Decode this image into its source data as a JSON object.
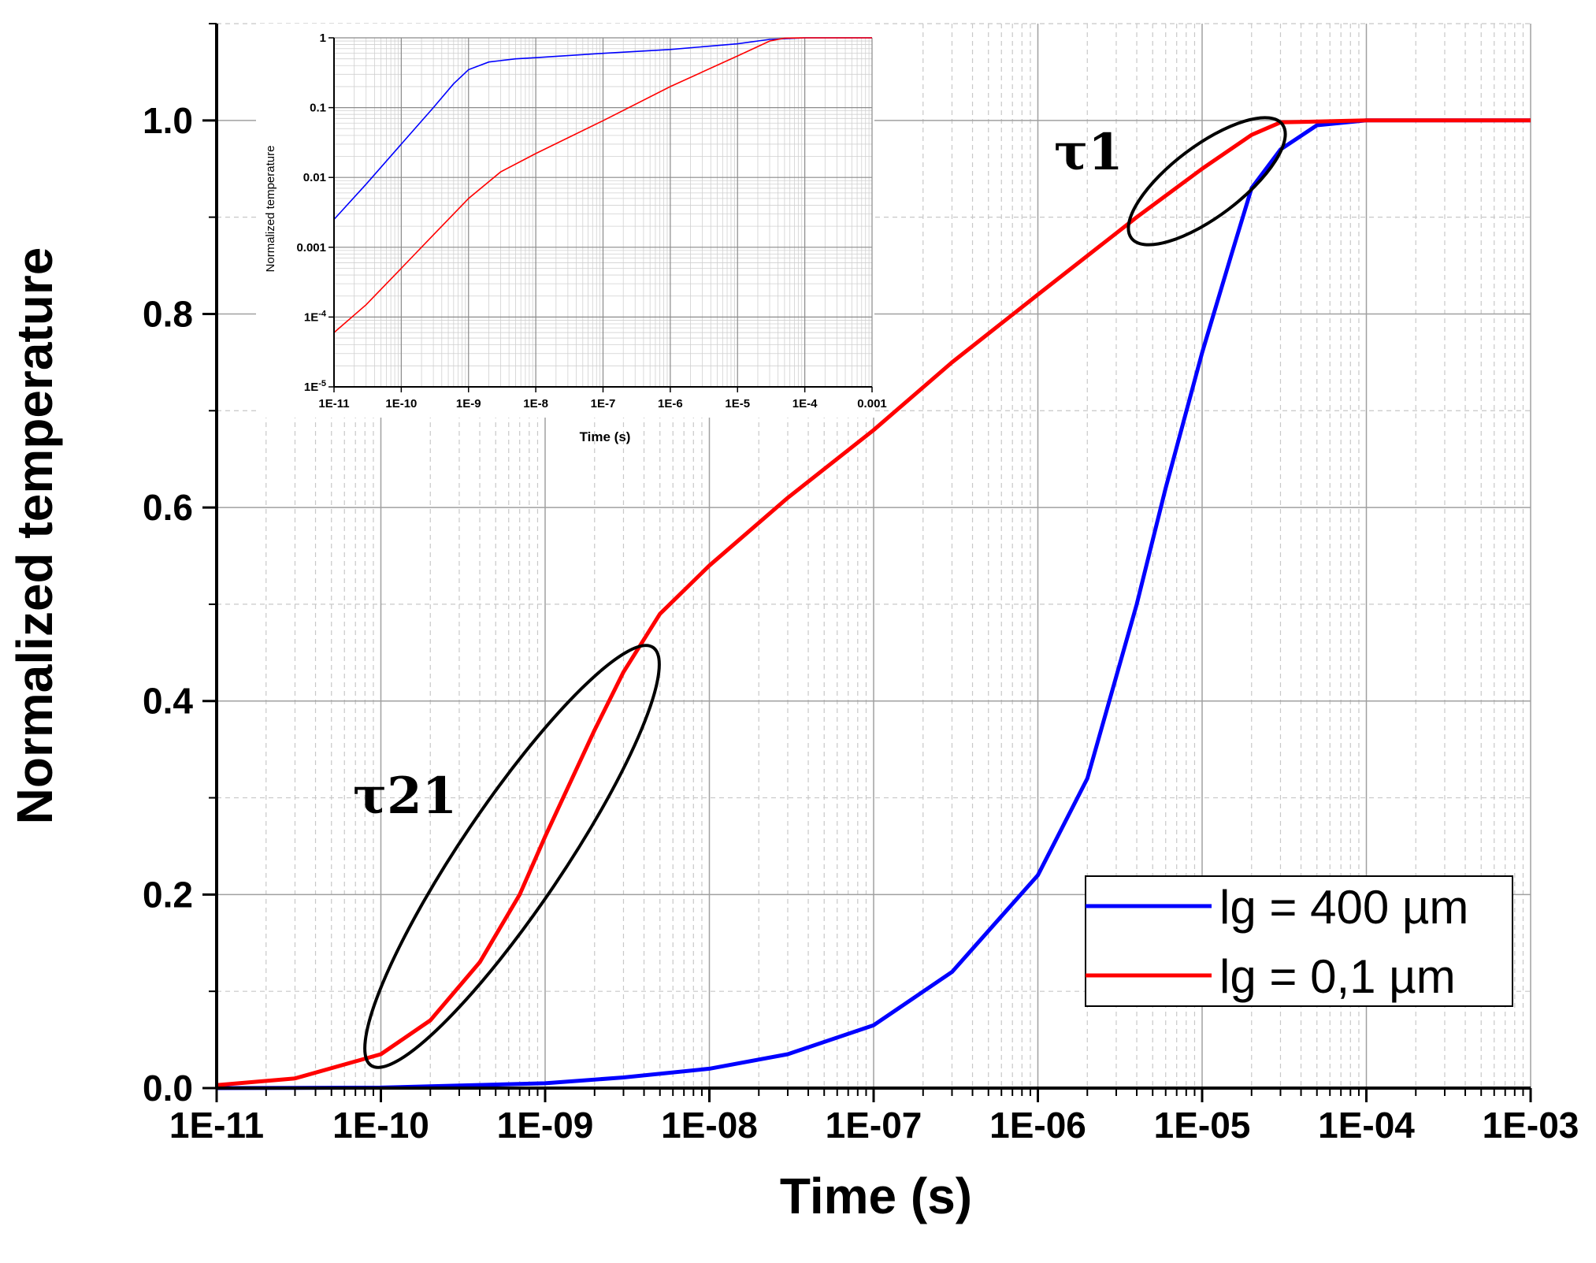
{
  "chart_data": [
    {
      "type": "line",
      "xlabel": "Time (s)",
      "ylabel": "Normalized temperature",
      "xscale": "log",
      "xlim": [
        1e-11,
        0.001
      ],
      "ylim": [
        0,
        1.1
      ],
      "grid": true,
      "x_tick_labels": [
        "1E-11",
        "1E-10",
        "1E-09",
        "1E-08",
        "1E-07",
        "1E-06",
        "1E-05",
        "1E-04",
        "1E-03"
      ],
      "y_tick_labels": [
        "0.0",
        "0.2",
        "0.4",
        "0.6",
        "0.8",
        "1.0"
      ],
      "legend": {
        "placement": "bottom-right",
        "entries": [
          "lg = 400 µm",
          "lg = 0,1 µm"
        ]
      },
      "annotations": [
        {
          "text": "τ21",
          "x": 6e-10,
          "y": 0.27
        },
        {
          "text": "τ1",
          "x": 1.2e-05,
          "y": 0.95
        }
      ],
      "series": [
        {
          "name": "lg = 400 µm",
          "color": "#0000ff",
          "x": [
            1e-11,
            1e-10,
            1e-09,
            3e-09,
            1e-08,
            3e-08,
            1e-07,
            3e-07,
            1e-06,
            2e-06,
            4e-06,
            6e-06,
            1e-05,
            1.5e-05,
            2e-05,
            3e-05,
            5e-05,
            0.0001,
            0.001
          ],
          "y": [
            0.0,
            0.0005,
            0.005,
            0.011,
            0.02,
            0.035,
            0.065,
            0.12,
            0.22,
            0.32,
            0.5,
            0.62,
            0.76,
            0.86,
            0.93,
            0.97,
            0.995,
            1.0,
            1.0
          ]
        },
        {
          "name": "lg = 0,1 µm",
          "color": "#ff0000",
          "x": [
            1e-11,
            3e-11,
            1e-10,
            2e-10,
            4e-10,
            7e-10,
            1e-09,
            2e-09,
            3e-09,
            5e-09,
            1e-08,
            3e-08,
            1e-07,
            3e-07,
            1e-06,
            4e-06,
            1e-05,
            2e-05,
            3e-05,
            0.0001,
            0.001
          ],
          "y": [
            0.003,
            0.01,
            0.035,
            0.07,
            0.13,
            0.2,
            0.26,
            0.37,
            0.43,
            0.49,
            0.54,
            0.61,
            0.68,
            0.75,
            0.82,
            0.9,
            0.95,
            0.985,
            0.998,
            1.0,
            1.0
          ]
        }
      ]
    },
    {
      "type": "line",
      "xlabel": "Time (s)",
      "ylabel": "Normalized temperature",
      "xscale": "log",
      "yscale": "log",
      "xlim": [
        1e-11,
        0.001
      ],
      "ylim": [
        1e-05,
        1
      ],
      "grid": true,
      "x_tick_labels": [
        "1E-11",
        "1E-10",
        "1E-9",
        "1E-8",
        "1E-7",
        "1E-6",
        "1E-5",
        "1E-4",
        "0.001"
      ],
      "y_tick_labels": [
        {
          "base": "1E",
          "exp": "-5"
        },
        {
          "base": "1E",
          "exp": "-4"
        },
        {
          "base": "0.001",
          "exp": ""
        },
        {
          "base": "0.01",
          "exp": ""
        },
        {
          "base": "0.1",
          "exp": ""
        },
        {
          "base": "1",
          "exp": ""
        }
      ],
      "series": [
        {
          "name": "lg = 400 µm",
          "color": "#0000ff",
          "x": [
            1e-11,
            3e-11,
            1e-10,
            3e-10,
            6e-10,
            1e-09,
            2e-09,
            5e-09,
            1e-08,
            1e-07,
            1e-06,
            1e-05,
            3e-05,
            0.0001,
            0.001
          ],
          "y": [
            0.0025,
            0.008,
            0.03,
            0.1,
            0.22,
            0.35,
            0.45,
            0.5,
            0.52,
            0.6,
            0.68,
            0.82,
            0.95,
            1.0,
            1.0
          ]
        },
        {
          "name": "lg = 0,1 µm",
          "color": "#ff0000",
          "x": [
            1e-11,
            3e-11,
            1e-10,
            3e-10,
            1e-09,
            3e-09,
            1e-08,
            1e-07,
            1e-06,
            1e-05,
            3e-05,
            5e-05,
            0.0001,
            0.001
          ],
          "y": [
            6e-05,
            0.00015,
            0.0005,
            0.0015,
            0.005,
            0.012,
            0.022,
            0.065,
            0.2,
            0.55,
            0.9,
            0.99,
            1.0,
            1.0
          ]
        }
      ]
    }
  ]
}
